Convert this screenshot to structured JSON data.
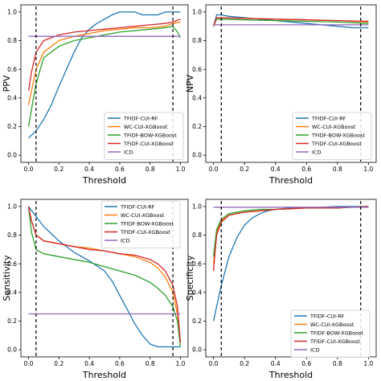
{
  "figure": {
    "palette": {
      "TFIDF-CUI-RF": "#1f77b4",
      "WC-CUI-XGBoost": "#ff7f0e",
      "TFIDF-BOW-XGBoost": "#2ca02c",
      "TFIDF-CUI-XGBoost": "#d62728",
      "ICD": "#9467bd"
    }
  },
  "chart_data": [
    {
      "id": "ppv",
      "type": "line",
      "title": "",
      "xlabel": "Threshold",
      "ylabel": "PPV",
      "xlim": [
        -0.05,
        1.05
      ],
      "ylim": [
        -0.05,
        1.05
      ],
      "xticks": [
        "0.0",
        "0.2",
        "0.4",
        "0.6",
        "0.8",
        "1.0"
      ],
      "yticks": [
        "0.0",
        "0.2",
        "0.4",
        "0.6",
        "0.8",
        "1.0"
      ],
      "legend_position": "bottom-right",
      "threshold_lines": [
        0.05,
        0.95
      ],
      "series": [
        {
          "name": "TFIDF-CUI-RF",
          "x": [
            0.0,
            0.05,
            0.1,
            0.15,
            0.2,
            0.25,
            0.3,
            0.35,
            0.4,
            0.45,
            0.5,
            0.55,
            0.6,
            0.65,
            0.7,
            0.75,
            0.8,
            0.85,
            0.9,
            0.92,
            0.95,
            1.0
          ],
          "y": [
            0.12,
            0.17,
            0.25,
            0.35,
            0.48,
            0.6,
            0.72,
            0.82,
            0.88,
            0.92,
            0.95,
            0.98,
            1.0,
            1.0,
            1.0,
            0.98,
            0.98,
            0.98,
            1.0,
            1.0,
            1.0,
            1.0
          ]
        },
        {
          "name": "WC-CUI-XGBoost",
          "x": [
            0.0,
            0.02,
            0.05,
            0.1,
            0.2,
            0.3,
            0.4,
            0.5,
            0.6,
            0.7,
            0.8,
            0.9,
            0.95,
            1.0
          ],
          "y": [
            0.35,
            0.45,
            0.6,
            0.72,
            0.8,
            0.83,
            0.85,
            0.87,
            0.88,
            0.89,
            0.89,
            0.9,
            0.92,
            0.93
          ]
        },
        {
          "name": "TFIDF-BOW-XGBoost",
          "x": [
            0.0,
            0.02,
            0.05,
            0.1,
            0.2,
            0.3,
            0.4,
            0.5,
            0.6,
            0.7,
            0.8,
            0.9,
            0.95,
            0.98,
            1.0
          ],
          "y": [
            0.2,
            0.32,
            0.5,
            0.68,
            0.76,
            0.8,
            0.82,
            0.84,
            0.86,
            0.87,
            0.88,
            0.89,
            0.9,
            0.86,
            0.82
          ]
        },
        {
          "name": "TFIDF-CUI-XGBoost",
          "x": [
            0.0,
            0.02,
            0.05,
            0.1,
            0.2,
            0.3,
            0.4,
            0.5,
            0.6,
            0.7,
            0.8,
            0.9,
            0.95,
            1.0
          ],
          "y": [
            0.45,
            0.58,
            0.72,
            0.8,
            0.84,
            0.86,
            0.87,
            0.88,
            0.89,
            0.9,
            0.91,
            0.92,
            0.93,
            0.95
          ]
        },
        {
          "name": "ICD",
          "x": [
            0.0,
            1.0
          ],
          "y": [
            0.83,
            0.83
          ]
        }
      ]
    },
    {
      "id": "npv",
      "type": "line",
      "title": "",
      "xlabel": "Threshold",
      "ylabel": "NPV",
      "xlim": [
        -0.05,
        1.05
      ],
      "ylim": [
        -0.05,
        1.05
      ],
      "xticks": [
        "0.0",
        "0.2",
        "0.4",
        "0.6",
        "0.8",
        "1.0"
      ],
      "yticks": [
        "0.0",
        "0.2",
        "0.4",
        "0.6",
        "0.8",
        "1.0"
      ],
      "legend_position": "bottom-right",
      "threshold_lines": [
        0.05,
        0.95
      ],
      "series": [
        {
          "name": "TFIDF-CUI-RF",
          "x": [
            0.0,
            0.02,
            0.05,
            0.1,
            0.2,
            0.4,
            0.6,
            0.8,
            0.9,
            1.0
          ],
          "y": [
            0.9,
            0.98,
            0.98,
            0.97,
            0.96,
            0.94,
            0.92,
            0.9,
            0.89,
            0.89
          ]
        },
        {
          "name": "WC-CUI-XGBoost",
          "x": [
            0.0,
            0.02,
            0.05,
            0.2,
            0.4,
            0.6,
            0.8,
            1.0
          ],
          "y": [
            0.9,
            0.96,
            0.96,
            0.955,
            0.95,
            0.945,
            0.94,
            0.93
          ]
        },
        {
          "name": "TFIDF-BOW-XGBoost",
          "x": [
            0.0,
            0.02,
            0.05,
            0.2,
            0.4,
            0.6,
            0.8,
            1.0
          ],
          "y": [
            0.9,
            0.95,
            0.95,
            0.945,
            0.94,
            0.935,
            0.93,
            0.92
          ]
        },
        {
          "name": "TFIDF-CUI-XGBoost",
          "x": [
            0.0,
            0.02,
            0.05,
            0.2,
            0.4,
            0.6,
            0.8,
            1.0
          ],
          "y": [
            0.9,
            0.96,
            0.96,
            0.955,
            0.95,
            0.945,
            0.94,
            0.935
          ]
        },
        {
          "name": "ICD",
          "x": [
            0.0,
            1.0
          ],
          "y": [
            0.91,
            0.91
          ]
        }
      ]
    },
    {
      "id": "sensitivity",
      "type": "line",
      "title": "",
      "xlabel": "Threshold",
      "ylabel": "Sensitivity",
      "xlim": [
        -0.05,
        1.05
      ],
      "ylim": [
        -0.05,
        1.05
      ],
      "xticks": [
        "0.0",
        "0.2",
        "0.4",
        "0.6",
        "0.8",
        "1.0"
      ],
      "yticks": [
        "0.0",
        "0.2",
        "0.4",
        "0.6",
        "0.8",
        "1.0"
      ],
      "legend_position": "top-right",
      "threshold_lines": [
        0.05,
        0.95
      ],
      "series": [
        {
          "name": "TFIDF-CUI-RF",
          "x": [
            0.0,
            0.05,
            0.1,
            0.2,
            0.3,
            0.4,
            0.5,
            0.55,
            0.6,
            0.65,
            0.7,
            0.75,
            0.8,
            0.85,
            0.9,
            0.95,
            1.0
          ],
          "y": [
            1.0,
            0.93,
            0.86,
            0.76,
            0.68,
            0.62,
            0.55,
            0.48,
            0.38,
            0.28,
            0.18,
            0.1,
            0.04,
            0.02,
            0.02,
            0.02,
            0.02
          ]
        },
        {
          "name": "WC-CUI-XGBoost",
          "x": [
            0.0,
            0.02,
            0.05,
            0.1,
            0.2,
            0.3,
            0.4,
            0.5,
            0.6,
            0.7,
            0.8,
            0.85,
            0.9,
            0.95,
            0.98,
            1.0
          ],
          "y": [
            1.0,
            0.9,
            0.8,
            0.76,
            0.74,
            0.72,
            0.71,
            0.69,
            0.67,
            0.65,
            0.61,
            0.57,
            0.51,
            0.4,
            0.25,
            0.05
          ]
        },
        {
          "name": "TFIDF-BOW-XGBoost",
          "x": [
            0.0,
            0.02,
            0.05,
            0.1,
            0.2,
            0.3,
            0.4,
            0.5,
            0.6,
            0.7,
            0.8,
            0.85,
            0.9,
            0.95,
            0.98,
            1.0
          ],
          "y": [
            1.0,
            0.82,
            0.7,
            0.67,
            0.65,
            0.63,
            0.61,
            0.58,
            0.55,
            0.52,
            0.47,
            0.43,
            0.38,
            0.3,
            0.2,
            0.02
          ]
        },
        {
          "name": "TFIDF-CUI-XGBoost",
          "x": [
            0.0,
            0.02,
            0.05,
            0.1,
            0.2,
            0.3,
            0.4,
            0.5,
            0.6,
            0.7,
            0.8,
            0.85,
            0.9,
            0.95,
            0.98,
            1.0
          ],
          "y": [
            1.0,
            0.9,
            0.8,
            0.76,
            0.74,
            0.72,
            0.7,
            0.69,
            0.67,
            0.66,
            0.63,
            0.6,
            0.55,
            0.45,
            0.3,
            0.05
          ]
        },
        {
          "name": "ICD",
          "x": [
            0.0,
            1.0
          ],
          "y": [
            0.25,
            0.25
          ]
        }
      ]
    },
    {
      "id": "specificity",
      "type": "line",
      "title": "",
      "xlabel": "Threshold",
      "ylabel": "Specificity",
      "xlim": [
        -0.05,
        1.05
      ],
      "ylim": [
        -0.05,
        1.05
      ],
      "xticks": [
        "0.0",
        "0.2",
        "0.4",
        "0.6",
        "0.8",
        "1.0"
      ],
      "yticks": [
        "0.0",
        "0.2",
        "0.4",
        "0.6",
        "0.8",
        "1.0"
      ],
      "legend_position": "bottom-right",
      "threshold_lines": [
        0.05,
        0.95
      ],
      "series": [
        {
          "name": "TFIDF-CUI-RF",
          "x": [
            0.0,
            0.05,
            0.1,
            0.15,
            0.2,
            0.25,
            0.3,
            0.35,
            0.4,
            0.5,
            0.6,
            0.8,
            1.0
          ],
          "y": [
            0.2,
            0.45,
            0.65,
            0.78,
            0.87,
            0.92,
            0.95,
            0.97,
            0.98,
            0.99,
            0.99,
            1.0,
            1.0
          ]
        },
        {
          "name": "WC-CUI-XGBoost",
          "x": [
            0.0,
            0.02,
            0.05,
            0.1,
            0.2,
            0.3,
            0.4,
            0.6,
            0.8,
            1.0
          ],
          "y": [
            0.6,
            0.82,
            0.9,
            0.94,
            0.96,
            0.97,
            0.98,
            0.99,
            0.99,
            1.0
          ]
        },
        {
          "name": "TFIDF-BOW-XGBoost",
          "x": [
            0.0,
            0.02,
            0.05,
            0.1,
            0.2,
            0.3,
            0.4,
            0.6,
            0.8,
            1.0
          ],
          "y": [
            0.65,
            0.84,
            0.91,
            0.95,
            0.97,
            0.98,
            0.98,
            0.99,
            0.99,
            1.0
          ]
        },
        {
          "name": "TFIDF-CUI-XGBoost",
          "x": [
            0.0,
            0.02,
            0.05,
            0.1,
            0.2,
            0.3,
            0.4,
            0.6,
            0.8,
            1.0
          ],
          "y": [
            0.55,
            0.8,
            0.89,
            0.94,
            0.96,
            0.97,
            0.98,
            0.99,
            0.99,
            1.0
          ]
        },
        {
          "name": "ICD",
          "x": [
            0.0,
            1.0
          ],
          "y": [
            0.995,
            0.995
          ]
        }
      ]
    }
  ]
}
